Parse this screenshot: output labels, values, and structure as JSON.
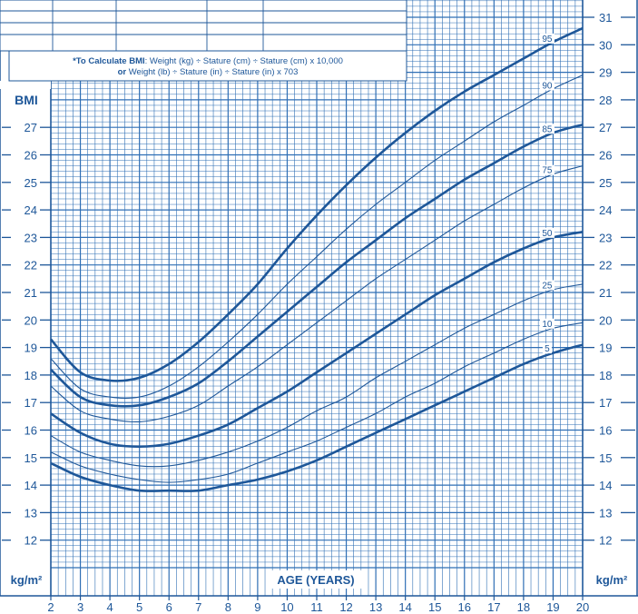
{
  "chart_data": {
    "type": "line",
    "ylabel": "BMI",
    "xlabel": "AGE (YEARS)",
    "y_unit": "kg/m²",
    "xlim": [
      2,
      20
    ],
    "ylim": [
      11,
      31
    ],
    "y_ticks_left": [
      12,
      13,
      14,
      15,
      16,
      17,
      18,
      19,
      20,
      21,
      22,
      23,
      24,
      25,
      26,
      27
    ],
    "y_ticks_right": [
      12,
      13,
      14,
      15,
      16,
      17,
      18,
      19,
      20,
      21,
      22,
      23,
      24,
      25,
      26,
      27,
      28,
      29,
      30,
      31
    ],
    "x_ticks": [
      2,
      3,
      4,
      5,
      6,
      7,
      8,
      9,
      10,
      11,
      12,
      13,
      14,
      15,
      16,
      17,
      18,
      19,
      20
    ],
    "grid": true,
    "x": [
      2,
      3,
      4,
      5,
      6,
      7,
      8,
      9,
      10,
      11,
      12,
      13,
      14,
      15,
      16,
      17,
      18,
      19,
      20
    ],
    "series": [
      {
        "name": "95",
        "weight": "heavy",
        "values": [
          19.3,
          18.1,
          17.8,
          17.9,
          18.4,
          19.2,
          20.2,
          21.3,
          22.6,
          23.8,
          24.9,
          25.9,
          26.8,
          27.6,
          28.3,
          28.9,
          29.5,
          30.1,
          30.6
        ]
      },
      {
        "name": "90",
        "weight": "light",
        "values": [
          18.6,
          17.5,
          17.2,
          17.2,
          17.6,
          18.3,
          19.2,
          20.2,
          21.3,
          22.3,
          23.3,
          24.2,
          25.0,
          25.8,
          26.5,
          27.2,
          27.8,
          28.4,
          28.9
        ]
      },
      {
        "name": "85",
        "weight": "heavy",
        "values": [
          18.2,
          17.2,
          16.9,
          16.9,
          17.2,
          17.7,
          18.5,
          19.4,
          20.3,
          21.2,
          22.1,
          22.9,
          23.7,
          24.4,
          25.1,
          25.7,
          26.3,
          26.8,
          27.1
        ]
      },
      {
        "name": "75",
        "weight": "light",
        "values": [
          17.6,
          16.7,
          16.4,
          16.3,
          16.5,
          16.9,
          17.6,
          18.3,
          19.1,
          19.9,
          20.7,
          21.5,
          22.2,
          22.9,
          23.6,
          24.2,
          24.8,
          25.3,
          25.6
        ]
      },
      {
        "name": "50",
        "weight": "heavy",
        "values": [
          16.6,
          15.9,
          15.5,
          15.4,
          15.5,
          15.8,
          16.2,
          16.8,
          17.4,
          18.1,
          18.8,
          19.5,
          20.2,
          20.9,
          21.5,
          22.1,
          22.6,
          23.0,
          23.2
        ]
      },
      {
        "name": "25",
        "weight": "light",
        "values": [
          15.8,
          15.2,
          14.9,
          14.7,
          14.7,
          14.9,
          15.2,
          15.6,
          16.1,
          16.7,
          17.2,
          17.9,
          18.5,
          19.1,
          19.7,
          20.2,
          20.7,
          21.1,
          21.3
        ]
      },
      {
        "name": "10",
        "weight": "light",
        "values": [
          15.2,
          14.7,
          14.4,
          14.2,
          14.1,
          14.2,
          14.4,
          14.8,
          15.2,
          15.6,
          16.1,
          16.6,
          17.2,
          17.7,
          18.3,
          18.8,
          19.3,
          19.7,
          19.9
        ]
      },
      {
        "name": "5",
        "weight": "heavy",
        "values": [
          14.8,
          14.3,
          14.0,
          13.8,
          13.8,
          13.8,
          14.0,
          14.2,
          14.5,
          14.9,
          15.4,
          15.9,
          16.4,
          16.9,
          17.4,
          17.9,
          18.4,
          18.8,
          19.1
        ]
      }
    ]
  },
  "formula": {
    "line1_bold": "*To Calculate BMI",
    "line1_rest": ": Weight (kg) ÷ Stature (cm) ÷ Stature (cm) x 10,000",
    "line2_bold": "or",
    "line2_rest": " Weight (lb) ÷ Stature (in) ÷ Stature (in) x 703"
  },
  "colors": {
    "primary": "#1e5799",
    "grid": "#2f6fb5",
    "background": "#ffffff"
  }
}
